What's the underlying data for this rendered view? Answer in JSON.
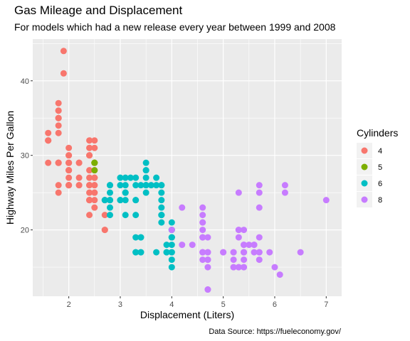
{
  "chart_data": {
    "type": "scatter",
    "title": "Gas Mileage and Displacement",
    "subtitle": "For models which had a new release every year between 1999 and 2008",
    "xlabel": "Displacement (Liters)",
    "ylabel": "Highway Miles Per Gallon",
    "caption": "Data Source: https://fueleconomy.gov/",
    "xlim": [
      1.3,
      7.3
    ],
    "ylim": [
      11.1,
      45.6
    ],
    "x_ticks": [
      2,
      3,
      4,
      5,
      6,
      7
    ],
    "y_ticks": [
      20,
      30,
      40
    ],
    "grid": true,
    "legend": {
      "title": "Cylinders",
      "position": "right",
      "entries": [
        {
          "label": "4",
          "color": "#F8766D"
        },
        {
          "label": "5",
          "color": "#7CAE00"
        },
        {
          "label": "6",
          "color": "#00BFC4"
        },
        {
          "label": "8",
          "color": "#C77CFF"
        }
      ]
    },
    "series": [
      {
        "name": "4",
        "color": "#F8766D",
        "points": [
          [
            1.8,
            29
          ],
          [
            1.8,
            29
          ],
          [
            2.0,
            31
          ],
          [
            2.0,
            30
          ],
          [
            1.8,
            26
          ],
          [
            1.8,
            25
          ],
          [
            2.0,
            28
          ],
          [
            2.0,
            28
          ],
          [
            2.4,
            27
          ],
          [
            2.4,
            30
          ],
          [
            2.5,
            26
          ],
          [
            2.4,
            26
          ],
          [
            2.5,
            25
          ],
          [
            2.5,
            23
          ],
          [
            2.0,
            29
          ],
          [
            2.0,
            26
          ],
          [
            2.0,
            29
          ],
          [
            2.0,
            26
          ],
          [
            2.2,
            26
          ],
          [
            2.2,
            29
          ],
          [
            2.4,
            26
          ],
          [
            2.4,
            31
          ],
          [
            2.4,
            32
          ],
          [
            2.5,
            27
          ],
          [
            2.5,
            25
          ],
          [
            2.5,
            26
          ],
          [
            2.5,
            32
          ],
          [
            2.7,
            22
          ],
          [
            2.7,
            20
          ],
          [
            2.7,
            20
          ],
          [
            2.5,
            24
          ],
          [
            2.5,
            27
          ],
          [
            2.5,
            29
          ],
          [
            2.4,
            24
          ],
          [
            2.4,
            25
          ],
          [
            2.4,
            22
          ],
          [
            1.6,
            33
          ],
          [
            1.6,
            32
          ],
          [
            1.6,
            32
          ],
          [
            1.6,
            29
          ],
          [
            1.6,
            32
          ],
          [
            1.8,
            34
          ],
          [
            1.8,
            36
          ],
          [
            1.8,
            36
          ],
          [
            1.8,
            29
          ],
          [
            2.0,
            26
          ],
          [
            2.0,
            27
          ],
          [
            2.0,
            30
          ],
          [
            2.4,
            30
          ],
          [
            2.5,
            27
          ],
          [
            1.8,
            35
          ],
          [
            1.8,
            37
          ],
          [
            1.8,
            35
          ],
          [
            1.8,
            29
          ],
          [
            1.9,
            44
          ],
          [
            1.9,
            41
          ],
          [
            2.0,
            29
          ],
          [
            2.0,
            26
          ],
          [
            2.0,
            28
          ],
          [
            2.0,
            29
          ],
          [
            2.2,
            27
          ],
          [
            2.2,
            29
          ],
          [
            2.4,
            24
          ],
          [
            2.4,
            24
          ],
          [
            1.8,
            33
          ],
          [
            1.8,
            35
          ],
          [
            2.0,
            28
          ],
          [
            2.0,
            26
          ],
          [
            2.5,
            29
          ],
          [
            2.5,
            28
          ],
          [
            2.5,
            31
          ],
          [
            2.7,
            24
          ],
          [
            2.2,
            26
          ],
          [
            2.4,
            28
          ]
        ]
      },
      {
        "name": "5",
        "color": "#7CAE00",
        "points": [
          [
            2.5,
            29
          ],
          [
            2.5,
            29
          ],
          [
            2.5,
            28
          ],
          [
            2.5,
            29
          ]
        ]
      },
      {
        "name": "6",
        "color": "#00BFC4",
        "points": [
          [
            2.8,
            26
          ],
          [
            2.8,
            26
          ],
          [
            3.1,
            27
          ],
          [
            3.1,
            25
          ],
          [
            2.8,
            25
          ],
          [
            3.1,
            25
          ],
          [
            3.1,
            24
          ],
          [
            3.1,
            25
          ],
          [
            2.8,
            23
          ],
          [
            2.8,
            24
          ],
          [
            3.1,
            22
          ],
          [
            3.3,
            22
          ],
          [
            3.3,
            24
          ],
          [
            3.3,
            24
          ],
          [
            3.8,
            22
          ],
          [
            3.8,
            22
          ],
          [
            3.8,
            22
          ],
          [
            3.8,
            24
          ],
          [
            3.4,
            19
          ],
          [
            3.4,
            17
          ],
          [
            3.9,
            17
          ],
          [
            3.9,
            17
          ],
          [
            4.0,
            17
          ],
          [
            4.0,
            16
          ],
          [
            4.0,
            19
          ],
          [
            4.0,
            19
          ],
          [
            4.0,
            21
          ],
          [
            4.0,
            20
          ],
          [
            4.0,
            20
          ],
          [
            4.0,
            17
          ],
          [
            3.5,
            26
          ],
          [
            3.5,
            29
          ],
          [
            3.0,
            26
          ],
          [
            3.0,
            24
          ],
          [
            3.3,
            26
          ],
          [
            3.3,
            27
          ],
          [
            3.5,
            28
          ],
          [
            3.5,
            28
          ],
          [
            3.8,
            26
          ],
          [
            3.8,
            26
          ],
          [
            3.6,
            26
          ],
          [
            3.8,
            25
          ],
          [
            3.5,
            27
          ],
          [
            3.5,
            26
          ],
          [
            3.7,
            26
          ],
          [
            3.7,
            27
          ],
          [
            3.3,
            17
          ],
          [
            3.3,
            17
          ],
          [
            3.4,
            17
          ],
          [
            3.4,
            19
          ],
          [
            2.7,
            24
          ],
          [
            2.7,
            24
          ],
          [
            4.0,
            18
          ],
          [
            4.0,
            19
          ],
          [
            3.0,
            27
          ],
          [
            3.5,
            26
          ],
          [
            3.8,
            23
          ],
          [
            3.8,
            21
          ],
          [
            2.8,
            24
          ],
          [
            2.8,
            24
          ],
          [
            3.1,
            26
          ],
          [
            3.2,
            27
          ],
          [
            4.0,
            15
          ],
          [
            3.9,
            18
          ],
          [
            3.5,
            25
          ],
          [
            3.3,
            19
          ],
          [
            3.0,
            24
          ],
          [
            3.7,
            17
          ],
          [
            3.4,
            26
          ],
          [
            2.8,
            22
          ]
        ]
      },
      {
        "name": "8",
        "color": "#C77CFF",
        "points": [
          [
            4.2,
            23
          ],
          [
            5.7,
            25
          ],
          [
            5.7,
            26
          ],
          [
            6.2,
            26
          ],
          [
            6.2,
            25
          ],
          [
            7.0,
            24
          ],
          [
            5.3,
            15
          ],
          [
            5.3,
            15
          ],
          [
            5.7,
            16
          ],
          [
            6.0,
            15
          ],
          [
            4.7,
            17
          ],
          [
            4.7,
            17
          ],
          [
            5.2,
            17
          ],
          [
            5.2,
            17
          ],
          [
            5.2,
            15
          ],
          [
            5.7,
            17
          ],
          [
            5.9,
            17
          ],
          [
            4.7,
            12
          ],
          [
            4.7,
            12
          ],
          [
            4.7,
            16
          ],
          [
            4.7,
            16
          ],
          [
            5.2,
            15
          ],
          [
            5.2,
            16
          ],
          [
            5.4,
            18
          ],
          [
            5.4,
            16
          ],
          [
            5.4,
            17
          ],
          [
            5.4,
            17
          ],
          [
            4.6,
            17
          ],
          [
            4.6,
            19
          ],
          [
            5.4,
            15
          ],
          [
            5.4,
            15
          ],
          [
            4.6,
            19
          ],
          [
            5.4,
            18
          ],
          [
            4.0,
            20
          ],
          [
            4.6,
            17
          ],
          [
            4.6,
            19
          ],
          [
            4.6,
            21
          ],
          [
            5.0,
            17
          ],
          [
            4.2,
            18
          ],
          [
            4.4,
            18
          ],
          [
            4.6,
            17
          ],
          [
            4.7,
            19
          ],
          [
            5.3,
            19
          ],
          [
            5.3,
            20
          ],
          [
            5.4,
            20
          ],
          [
            5.6,
            18
          ],
          [
            5.6,
            18
          ],
          [
            5.6,
            17
          ],
          [
            5.7,
            17
          ],
          [
            5.7,
            19
          ],
          [
            6.1,
            14
          ],
          [
            6.5,
            17
          ],
          [
            4.6,
            23
          ],
          [
            4.6,
            22
          ],
          [
            4.6,
            20
          ],
          [
            4.6,
            16
          ],
          [
            5.3,
            25
          ],
          [
            4.7,
            15
          ],
          [
            5.3,
            20
          ],
          [
            5.5,
            18
          ],
          [
            5.0,
            17
          ],
          [
            5.4,
            17
          ],
          [
            4.6,
            21
          ],
          [
            5.7,
            23
          ]
        ]
      }
    ]
  }
}
